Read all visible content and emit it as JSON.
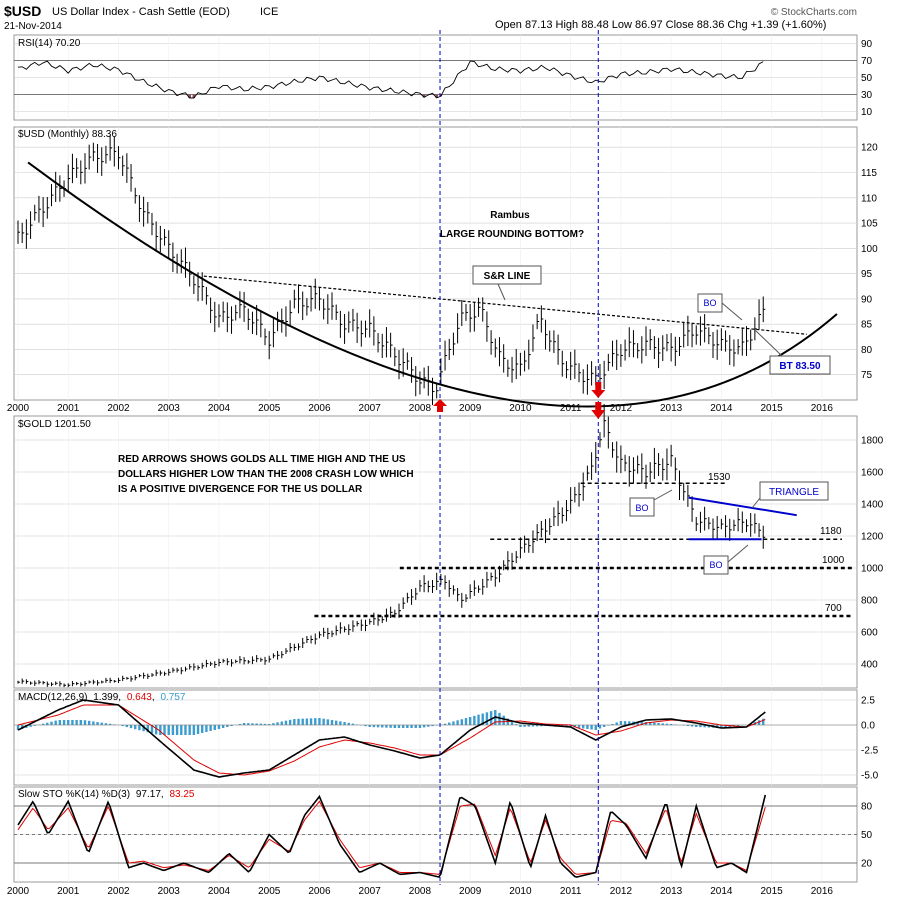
{
  "header": {
    "symbol": "$USD",
    "name": "US Dollar Index - Cash Settle (EOD)",
    "exchange": "ICE",
    "date": "21-Nov-2014",
    "ohlc": "Open 87.13   High 88.48   Low 86.97   Close 88.36   Chg +1.39 (+1.60%)",
    "brand": "© StockCharts.com"
  },
  "colors": {
    "red": "#e00000",
    "blue": "#0000cc",
    "macd_hist": "#3b9ccf",
    "rsi_fill": "#8b4a4a"
  },
  "chart_data": [
    {
      "type": "line",
      "title": "RSI(14) 70.20",
      "y_ticks": [
        90,
        70,
        50,
        30,
        10
      ],
      "ylim": [
        0,
        100
      ],
      "x": [
        2000.0,
        2000.5,
        2001.0,
        2001.5,
        2002.0,
        2002.5,
        2003.0,
        2003.5,
        2004.0,
        2004.5,
        2005.0,
        2005.5,
        2006.0,
        2006.5,
        2007.0,
        2007.5,
        2008.0,
        2008.4,
        2008.7,
        2009.0,
        2009.5,
        2010.0,
        2010.5,
        2011.0,
        2011.5,
        2012.0,
        2012.5,
        2013.0,
        2013.5,
        2014.0,
        2014.4,
        2014.7,
        2014.9
      ],
      "values": [
        60,
        68,
        58,
        65,
        59,
        45,
        34,
        27,
        40,
        36,
        39,
        45,
        50,
        44,
        38,
        34,
        30,
        28,
        48,
        68,
        60,
        58,
        62,
        52,
        44,
        54,
        56,
        60,
        56,
        52,
        50,
        62,
        70
      ]
    },
    {
      "type": "bar",
      "title": "$USD (Monthly) 88.36",
      "ylim": [
        70,
        124
      ],
      "y_ticks": [
        120,
        115,
        110,
        105,
        100,
        95,
        90,
        85,
        80,
        75
      ],
      "x_ticks": [
        "2000",
        "2001",
        "2002",
        "2003",
        "2004",
        "2005",
        "2006",
        "2007",
        "2008",
        "2009",
        "2010",
        "2011",
        "2012",
        "2013",
        "2014",
        "2015",
        "2016"
      ],
      "x": [
        2000.0,
        2000.5,
        2001.0,
        2001.5,
        2002.0,
        2002.5,
        2003.0,
        2003.5,
        2004.0,
        2004.5,
        2005.0,
        2005.5,
        2006.0,
        2006.5,
        2007.0,
        2007.5,
        2008.0,
        2008.3,
        2008.8,
        2009.2,
        2009.6,
        2010.0,
        2010.4,
        2010.8,
        2011.2,
        2011.5,
        2012.0,
        2012.5,
        2013.0,
        2013.5,
        2014.0,
        2014.4,
        2014.7,
        2014.9
      ],
      "values": [
        102,
        108,
        114,
        118,
        119,
        107,
        100,
        94,
        86,
        88,
        82,
        89,
        90,
        85,
        84,
        79,
        74,
        72,
        86,
        88,
        78,
        76,
        86,
        78,
        75,
        74,
        80,
        81,
        80,
        84,
        81,
        80,
        85,
        88.36
      ],
      "annotations": [
        {
          "text": "Rambus",
          "x": 2010.0,
          "y": 105.5
        },
        {
          "text": "LARGE ROUNDING BOTTOM?",
          "x": 2010.0,
          "y": 102
        },
        {
          "text": "S&R LINE",
          "x": 2009.7,
          "y": 93.4
        },
        {
          "text": "BO",
          "x": 2014.0,
          "y": 89.5
        },
        {
          "text": "BT 83.50",
          "x": 2015.1,
          "y": 79.3
        }
      ],
      "resistance_line": {
        "x": [
          2003.7,
          2015.7
        ],
        "y": [
          94.5,
          83
        ]
      },
      "rounding_bottom": {
        "x": [
          2000.2,
          2009.5,
          2016.3
        ],
        "y": [
          117,
          70.5,
          87
        ]
      }
    },
    {
      "type": "bar",
      "title": "$GOLD 1201.50",
      "ylim": [
        250,
        1950
      ],
      "y_ticks": [
        1800,
        1600,
        1400,
        1200,
        1000,
        800,
        600,
        400
      ],
      "x": [
        2000.0,
        2001.0,
        2002.0,
        2003.0,
        2004.0,
        2005.0,
        2006.0,
        2007.0,
        2007.5,
        2008.0,
        2008.5,
        2008.8,
        2009.5,
        2010.0,
        2010.5,
        2011.0,
        2011.4,
        2011.65,
        2012.0,
        2012.5,
        2013.0,
        2013.5,
        2014.0,
        2014.5,
        2014.9
      ],
      "values": [
        290,
        270,
        300,
        350,
        410,
        430,
        580,
        660,
        720,
        880,
        920,
        800,
        950,
        1110,
        1250,
        1400,
        1600,
        1900,
        1650,
        1600,
        1670,
        1300,
        1250,
        1290,
        1201.5
      ],
      "annotations": [
        {
          "text": "RED ARROWS SHOWS GOLDS ALL TIME HIGH AND THE US"
        },
        {
          "text": "DOLLARS HIGHER LOW THAN THE 2008 CRASH LOW WHICH"
        },
        {
          "text": "IS A POSITIVE DIVERGENCE FOR THE US DOLLAR"
        },
        {
          "text": "1530",
          "x": 2013.9,
          "y": 1550
        },
        {
          "text": "1180",
          "x": 2015.7,
          "y": 1200
        },
        {
          "text": "1000",
          "x": 2015.7,
          "y": 1030
        },
        {
          "text": "700",
          "x": 2015.7,
          "y": 720
        },
        {
          "text": "TRIANGLE",
          "x": 2015.0,
          "y": 1460
        },
        {
          "text": "BO",
          "x": 2012.5,
          "y": 1350
        },
        {
          "text": "BO",
          "x": 2014.0,
          "y": 1000
        }
      ],
      "levels": [
        1530,
        1180,
        1000,
        700
      ]
    },
    {
      "type": "line",
      "title": "MACD(12,26,9)",
      "legend": [
        "1.399",
        "0.643",
        "0.757"
      ],
      "ylim": [
        -6,
        3.5
      ],
      "y_ticks": [
        2.5,
        0.0,
        -2.5,
        -5.0
      ],
      "x": [
        2000.0,
        2000.8,
        2001.3,
        2002.0,
        2002.8,
        2003.5,
        2004.0,
        2004.5,
        2005.0,
        2005.5,
        2006.0,
        2006.5,
        2007.0,
        2007.5,
        2008.0,
        2008.4,
        2009.0,
        2009.5,
        2010.0,
        2010.5,
        2011.0,
        2011.5,
        2012.0,
        2012.5,
        2013.0,
        2013.5,
        2014.0,
        2014.5,
        2014.9
      ],
      "macd": [
        -0.5,
        1.5,
        2.5,
        2.0,
        -1.5,
        -4.5,
        -5.2,
        -4.8,
        -4.5,
        -3.0,
        -1.5,
        -1.2,
        -2.0,
        -2.6,
        -3.3,
        -3.0,
        -0.5,
        0.8,
        0.2,
        0.0,
        -0.2,
        -1.5,
        -0.2,
        0.5,
        0.6,
        0.2,
        -0.3,
        -0.2,
        1.4
      ],
      "signal": [
        0.0,
        1.0,
        2.0,
        2.0,
        -0.5,
        -3.5,
        -4.8,
        -5.0,
        -4.6,
        -3.6,
        -2.2,
        -1.5,
        -1.8,
        -2.3,
        -3.0,
        -3.0,
        -1.3,
        0.3,
        0.4,
        0.1,
        0.0,
        -1.0,
        -0.6,
        0.2,
        0.5,
        0.4,
        0.0,
        -0.2,
        0.6
      ],
      "histogram": [
        -0.5,
        0.5,
        0.5,
        0.0,
        -1.0,
        -1.0,
        -0.4,
        0.2,
        0.1,
        0.6,
        0.7,
        0.3,
        -0.2,
        -0.3,
        -0.3,
        0.0,
        0.8,
        1.5,
        -0.2,
        -0.1,
        -0.2,
        -0.5,
        0.4,
        0.3,
        0.1,
        -0.2,
        -0.3,
        0.0,
        0.76
      ]
    },
    {
      "type": "line",
      "title": "Slow STO %K(14) %D(3)",
      "legend": [
        "97.17",
        "83.25"
      ],
      "ylim": [
        0,
        100
      ],
      "y_ticks": [
        80,
        50,
        20
      ],
      "x": [
        2000.0,
        2000.3,
        2000.6,
        2001.0,
        2001.4,
        2001.8,
        2002.2,
        2002.5,
        2002.9,
        2003.3,
        2003.8,
        2004.2,
        2004.6,
        2005.0,
        2005.4,
        2005.7,
        2006.0,
        2006.4,
        2006.8,
        2007.2,
        2007.6,
        2008.0,
        2008.4,
        2008.8,
        2009.1,
        2009.5,
        2009.8,
        2010.2,
        2010.5,
        2010.8,
        2011.1,
        2011.5,
        2011.8,
        2012.1,
        2012.5,
        2012.9,
        2013.2,
        2013.5,
        2013.9,
        2014.2,
        2014.5,
        2014.9
      ],
      "k": [
        60,
        85,
        50,
        85,
        30,
        85,
        15,
        20,
        12,
        20,
        10,
        30,
        10,
        50,
        30,
        70,
        90,
        40,
        10,
        20,
        8,
        10,
        5,
        90,
        80,
        20,
        85,
        15,
        70,
        20,
        5,
        10,
        75,
        60,
        25,
        85,
        15,
        80,
        15,
        20,
        10,
        97.17
      ],
      "d": [
        55,
        78,
        55,
        78,
        35,
        80,
        20,
        22,
        15,
        18,
        12,
        28,
        15,
        45,
        32,
        65,
        85,
        45,
        15,
        20,
        10,
        10,
        8,
        80,
        82,
        28,
        78,
        20,
        65,
        25,
        8,
        10,
        65,
        62,
        30,
        78,
        20,
        72,
        20,
        20,
        12,
        83.25
      ]
    }
  ]
}
